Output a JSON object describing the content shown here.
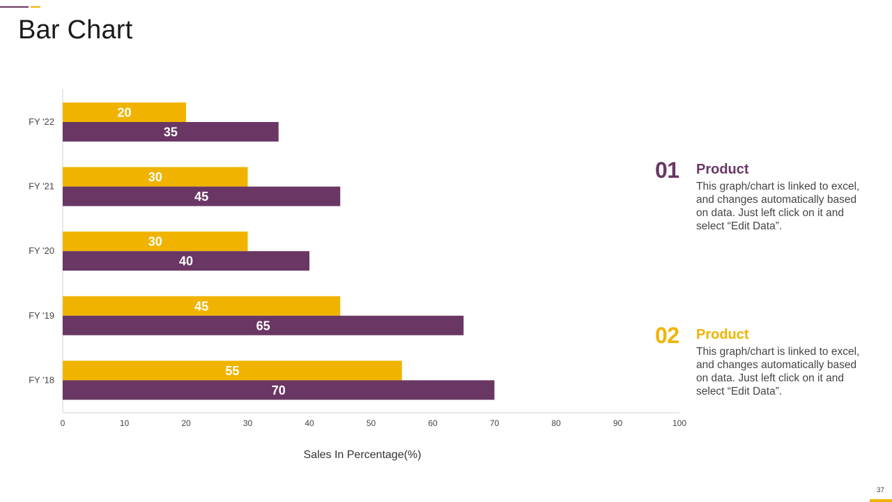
{
  "slide": {
    "title": "Bar Chart",
    "page_number": "37"
  },
  "colors": {
    "purple": "#6a3764",
    "yellow": "#f0b400",
    "axis": "#d0d0d0"
  },
  "chart_data": {
    "type": "bar",
    "orientation": "horizontal",
    "categories": [
      "FY '22",
      "FY '21",
      "FY '20",
      "FY '19",
      "FY '18"
    ],
    "series": [
      {
        "name": "Product 02",
        "color": "#f0b400",
        "values": [
          20,
          30,
          30,
          45,
          55
        ]
      },
      {
        "name": "Product 01",
        "color": "#6a3764",
        "values": [
          35,
          45,
          40,
          65,
          70
        ]
      }
    ],
    "xlim": [
      0,
      100
    ],
    "xticks": [
      0,
      10,
      20,
      30,
      40,
      50,
      60,
      70,
      80,
      90,
      100
    ],
    "xlabel": "Sales In  Percentage(%)",
    "ylabel": "",
    "grid": false,
    "data_labels": true
  },
  "legend": [
    {
      "number": "01",
      "title": "Product",
      "color": "#6a3764",
      "text": "This graph/chart is linked to excel, and changes automatically based on data. Just left click on it and select “Edit Data”."
    },
    {
      "number": "02",
      "title": "Product",
      "color": "#f0b400",
      "text": "This graph/chart is linked to excel, and changes automatically based on data. Just left click on it and select “Edit Data”."
    }
  ]
}
